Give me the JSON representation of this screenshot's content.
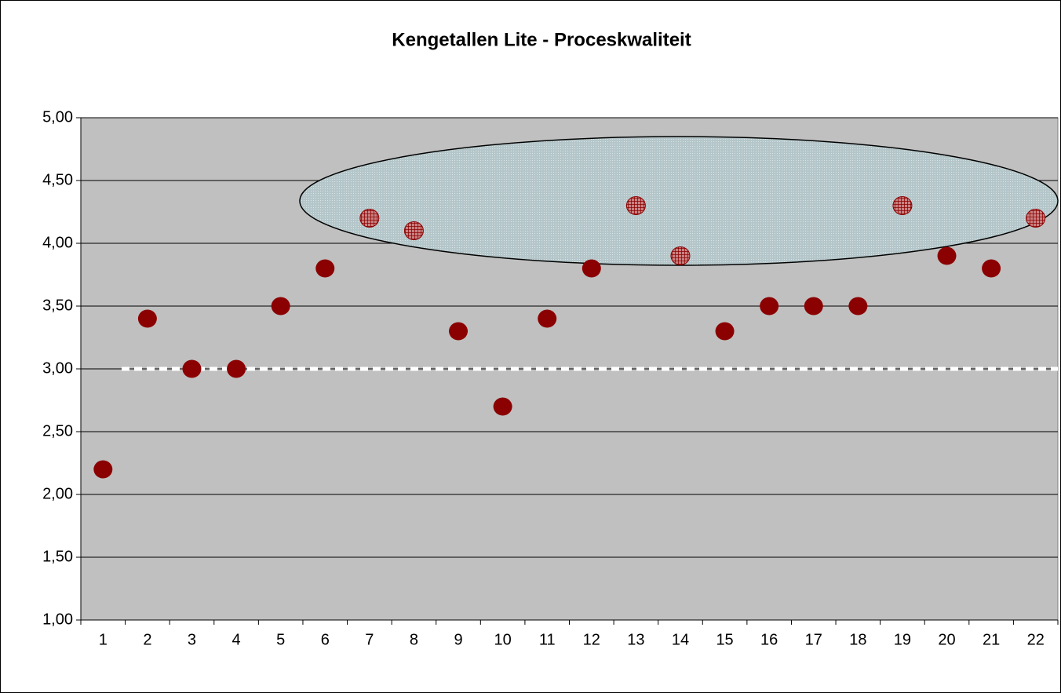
{
  "chart_data": {
    "type": "scatter",
    "title": "Kengetallen Lite - Proceskwaliteit",
    "categories": [
      "1",
      "2",
      "3",
      "4",
      "5",
      "6",
      "7",
      "8",
      "9",
      "10",
      "11",
      "12",
      "13",
      "14",
      "15",
      "16",
      "17",
      "18",
      "19",
      "20",
      "21",
      "22"
    ],
    "values": [
      2.2,
      3.4,
      3.0,
      3.0,
      3.5,
      3.8,
      4.2,
      4.1,
      3.3,
      2.7,
      3.4,
      3.8,
      4.3,
      3.9,
      3.3,
      3.5,
      3.5,
      3.5,
      4.3,
      3.9,
      3.8,
      4.2
    ],
    "color": "#8b0000",
    "reference_line": 3,
    "ylim": [
      1,
      5
    ],
    "yticks": [
      {
        "value": 1,
        "label": "1,00"
      },
      {
        "value": 1.5,
        "label": "1,50"
      },
      {
        "value": 2,
        "label": "2,00"
      },
      {
        "value": 2.5,
        "label": "2,50"
      },
      {
        "value": 3,
        "label": "3,00"
      },
      {
        "value": 3.5,
        "label": "3,50"
      },
      {
        "value": 4,
        "label": "4,00"
      },
      {
        "value": 4.5,
        "label": "4,50"
      },
      {
        "value": 5,
        "label": "5,00"
      }
    ],
    "grid": true
  }
}
